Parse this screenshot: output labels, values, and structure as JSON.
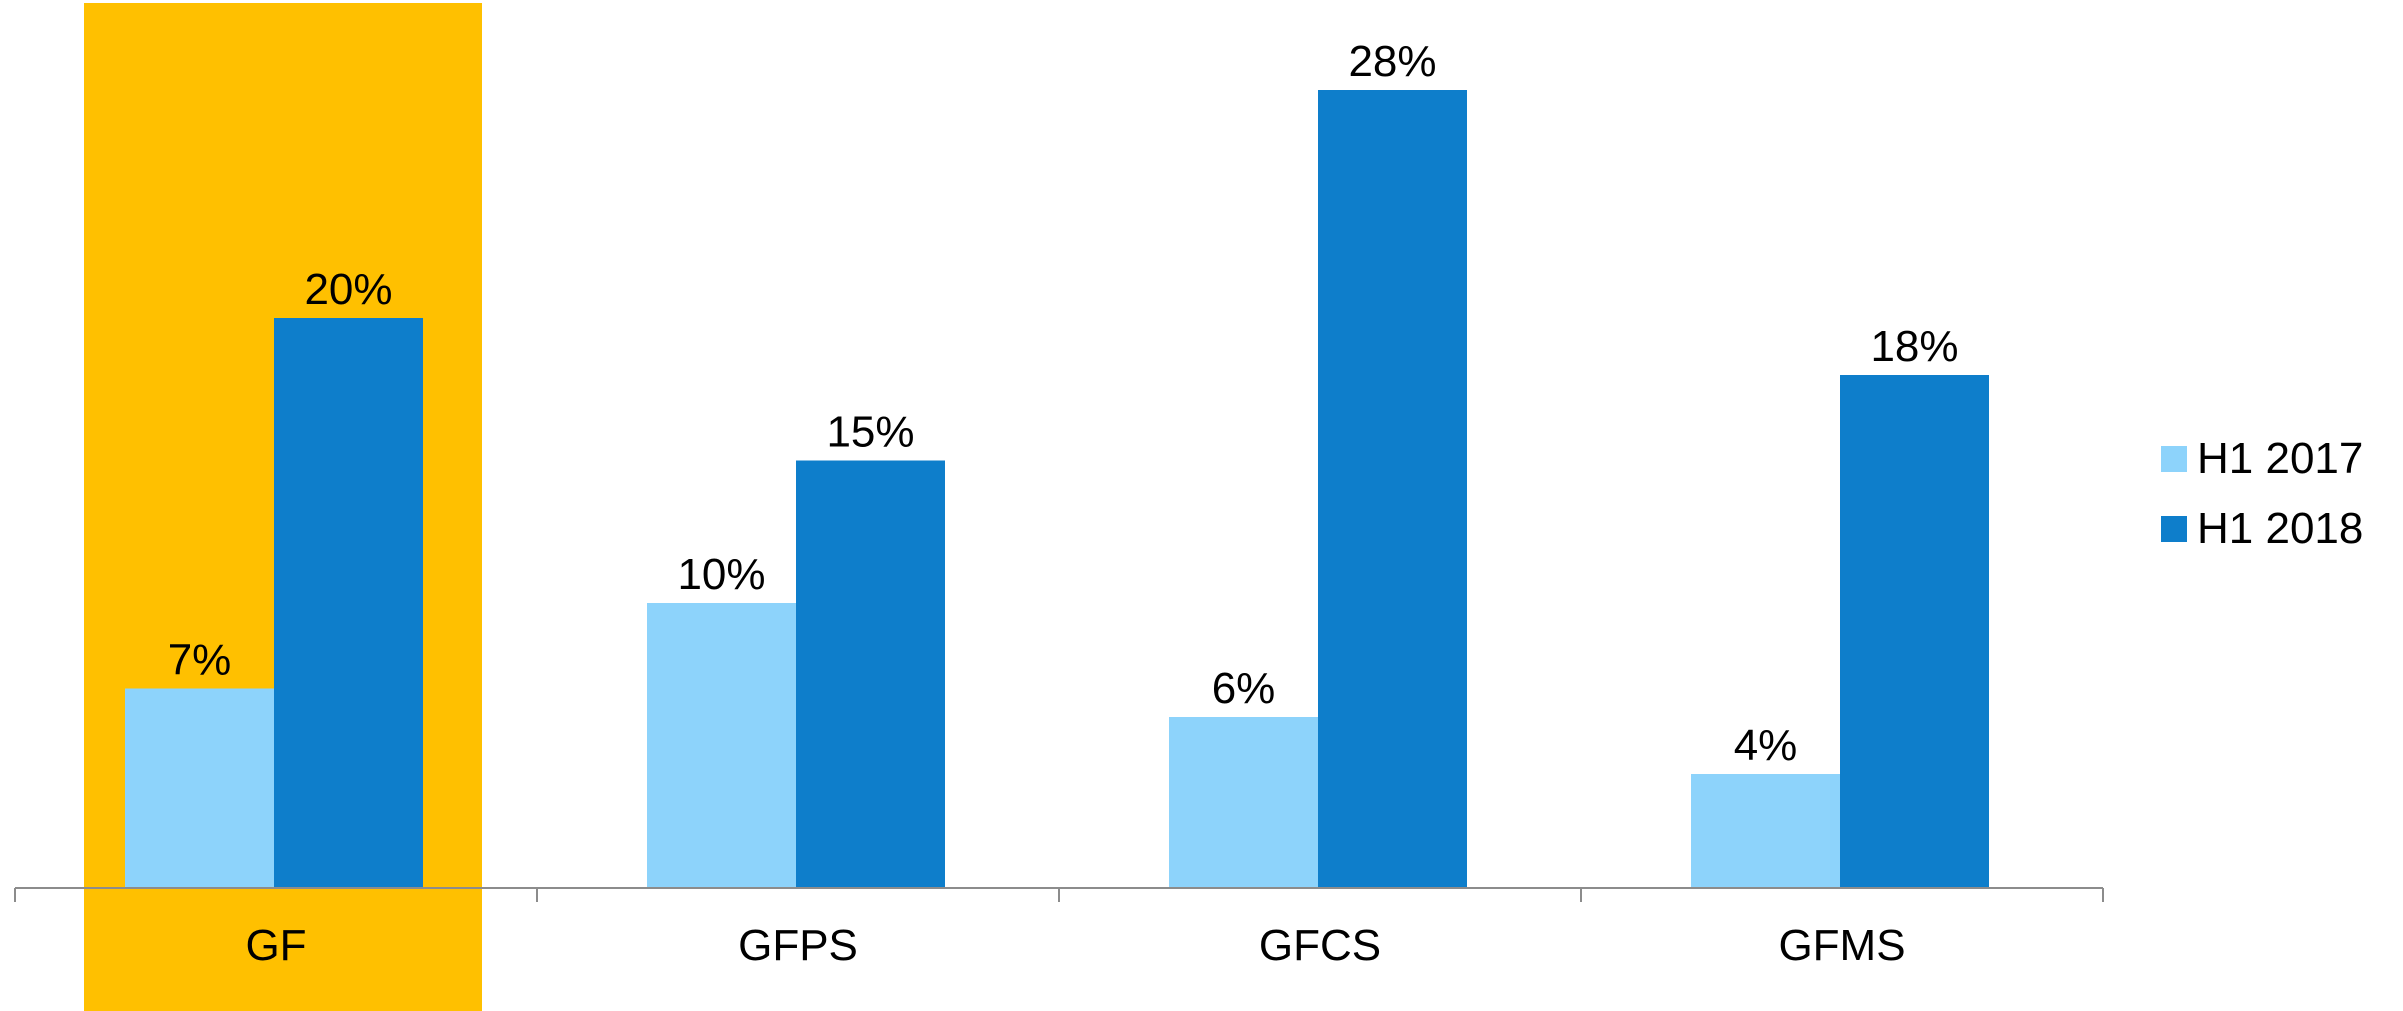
{
  "chart_data": {
    "type": "bar",
    "categories": [
      "GF",
      "GFPS",
      "GFCS",
      "GFMS"
    ],
    "highlighted_category": "GF",
    "series": [
      {
        "name": "H1 2017",
        "values": [
          7,
          10,
          6,
          4
        ],
        "labels": [
          "7%",
          "10%",
          "6%",
          "4%"
        ]
      },
      {
        "name": "H1 2018",
        "values": [
          20,
          15,
          28,
          18
        ],
        "labels": [
          "20%",
          "15%",
          "28%",
          "18%"
        ]
      }
    ],
    "title": "",
    "xlabel": "",
    "ylabel": "",
    "ylim": [
      0,
      28
    ],
    "grid": false,
    "legend_position": "right",
    "colors": {
      "H1 2017": "#8dd3fb",
      "H1 2018": "#0e7ecb",
      "highlight": "#ffc000",
      "axis": "#8c8c8c"
    }
  }
}
